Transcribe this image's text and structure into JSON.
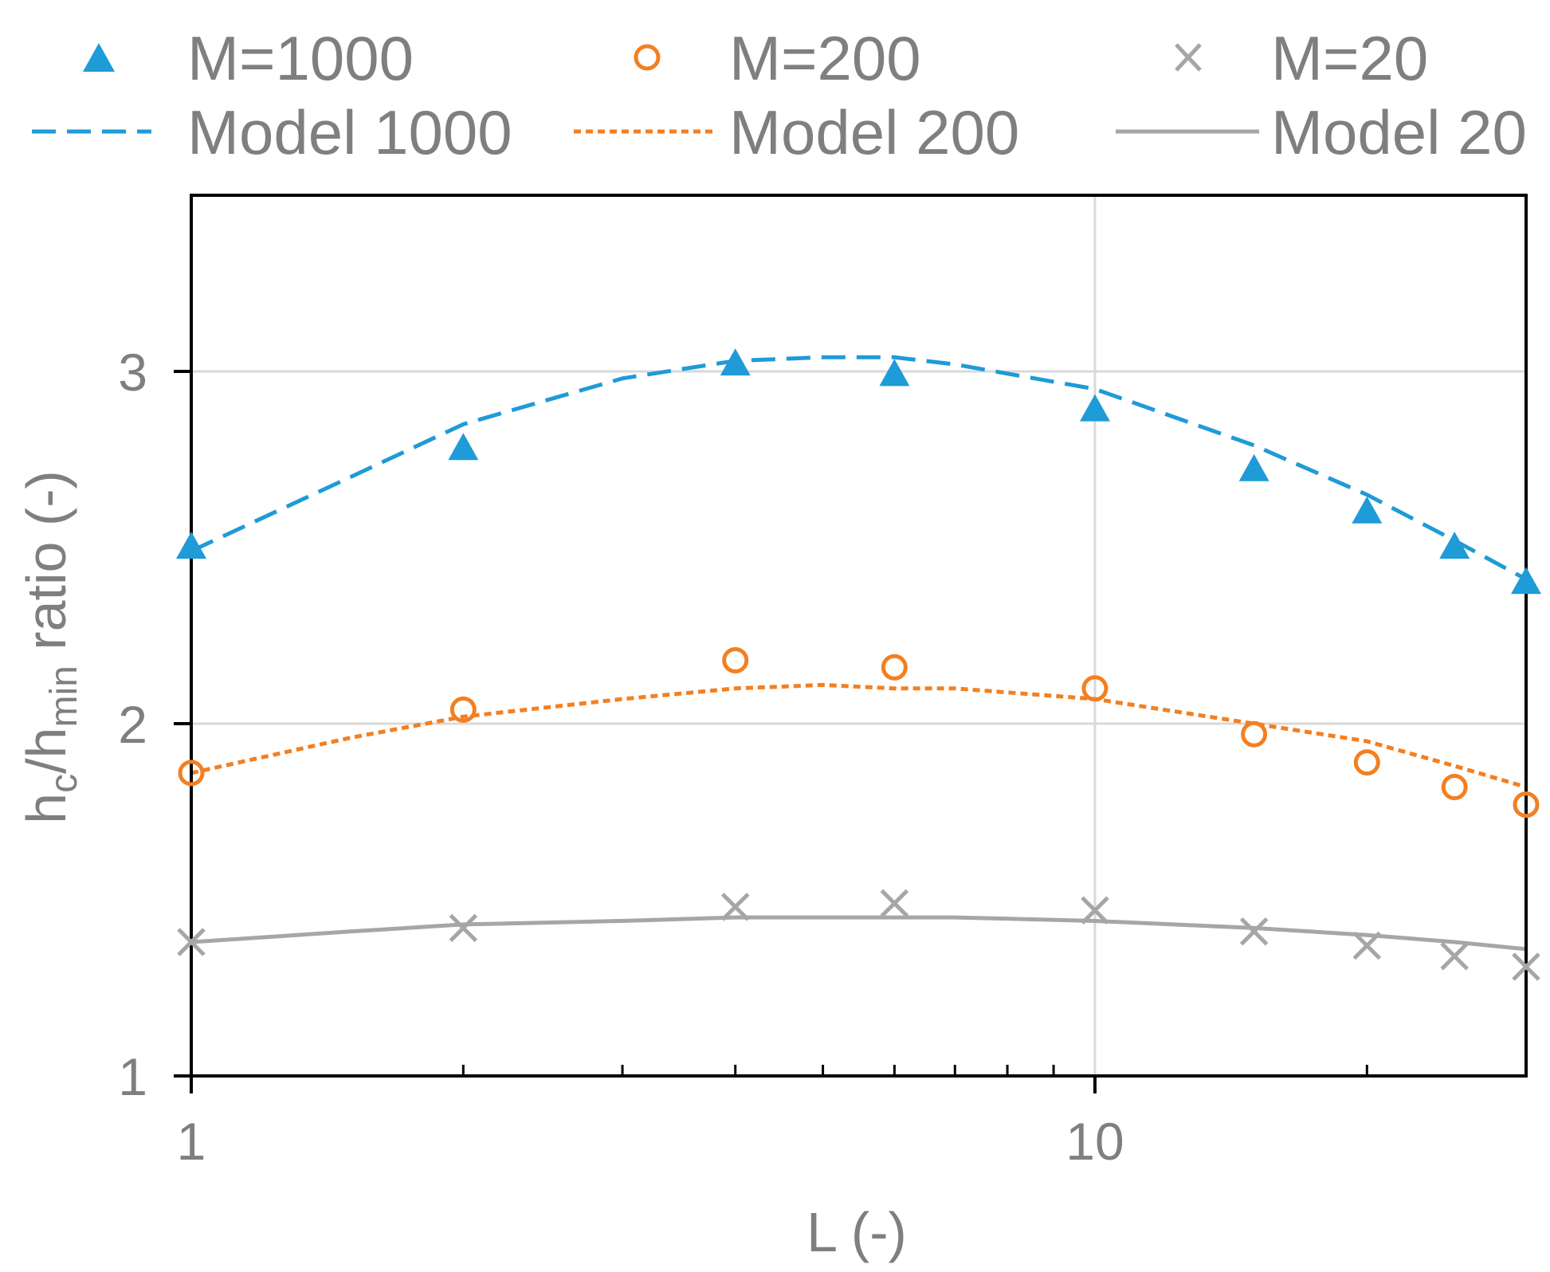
{
  "chart_data": {
    "type": "scatter",
    "title": "",
    "xlabel": "L (-)",
    "ylabel": {
      "h": "h",
      "sub_c": "c",
      "slash": "/",
      "h2": "h",
      "sub_min": "min",
      "suffix": " ratio (-)"
    },
    "xscale": "log",
    "xlim": [
      1,
      30
    ],
    "ylim": [
      1,
      3.5
    ],
    "xticks": [
      {
        "value": 1,
        "label": "1"
      },
      {
        "value": 10,
        "label": "10"
      }
    ],
    "yticks": [
      {
        "value": 1,
        "label": "1"
      },
      {
        "value": 2,
        "label": "2"
      },
      {
        "value": 3,
        "label": "3"
      }
    ],
    "grid": true,
    "legend_position": "top",
    "legend": {
      "m1000": "M=1000",
      "m200": "M=200",
      "m20": "M=20",
      "model1000": "Model 1000",
      "model200": "Model 200",
      "model20": "Model 20"
    },
    "series": [
      {
        "name": "M=1000",
        "kind": "points",
        "marker": "triangle",
        "color": "#1f9bd7",
        "x": [
          1,
          2,
          4,
          6,
          10,
          15,
          20,
          25,
          30
        ],
        "y": [
          2.5,
          2.78,
          3.02,
          2.99,
          2.89,
          2.72,
          2.6,
          2.5,
          2.4
        ]
      },
      {
        "name": "M=200",
        "kind": "points",
        "marker": "circle",
        "color": "#f28022",
        "x": [
          1,
          2,
          4,
          6,
          10,
          15,
          20,
          25,
          30
        ],
        "y": [
          1.86,
          2.04,
          2.18,
          2.16,
          2.1,
          1.97,
          1.89,
          1.82,
          1.77
        ]
      },
      {
        "name": "M=20",
        "kind": "points",
        "marker": "x",
        "color": "#a6a6a6",
        "x": [
          1,
          2,
          4,
          6,
          10,
          15,
          20,
          25,
          30
        ],
        "y": [
          1.38,
          1.42,
          1.48,
          1.49,
          1.47,
          1.41,
          1.37,
          1.34,
          1.31
        ]
      },
      {
        "name": "Model 1000",
        "kind": "line",
        "dash": "dashed",
        "color": "#1f9bd7",
        "x": [
          1,
          1.5,
          2,
          3,
          4,
          5,
          6,
          7,
          10,
          15,
          20,
          25,
          30
        ],
        "y": [
          2.49,
          2.7,
          2.85,
          2.98,
          3.03,
          3.04,
          3.04,
          3.02,
          2.95,
          2.79,
          2.65,
          2.52,
          2.41
        ]
      },
      {
        "name": "Model 200",
        "kind": "line",
        "dash": "dotted",
        "color": "#f28022",
        "x": [
          1,
          1.5,
          2,
          3,
          4,
          5,
          6,
          7,
          10,
          15,
          20,
          25,
          30
        ],
        "y": [
          1.86,
          1.96,
          2.02,
          2.07,
          2.1,
          2.11,
          2.1,
          2.1,
          2.07,
          2.0,
          1.95,
          1.88,
          1.82
        ]
      },
      {
        "name": "Model 20",
        "kind": "line",
        "dash": "solid",
        "color": "#a6a6a6",
        "x": [
          1,
          1.5,
          2,
          3,
          4,
          5,
          6,
          7,
          10,
          15,
          20,
          25,
          30
        ],
        "y": [
          1.38,
          1.41,
          1.43,
          1.44,
          1.45,
          1.45,
          1.45,
          1.45,
          1.44,
          1.42,
          1.4,
          1.38,
          1.36
        ]
      }
    ]
  }
}
